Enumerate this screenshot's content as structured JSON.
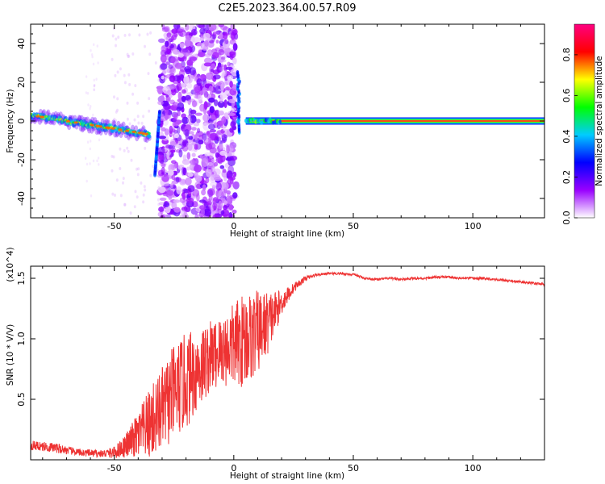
{
  "title": "C2E5.2023.364.00.57.R09",
  "chart_data": [
    {
      "type": "heatmap",
      "xlabel": "Height of straight line (km)",
      "ylabel": "Frequency (Hz)",
      "xlim": [
        -85,
        130
      ],
      "ylim": [
        -50,
        50
      ],
      "xticks": [
        -50,
        0,
        50,
        100
      ],
      "yticks": [
        -40,
        -20,
        0,
        20,
        40
      ],
      "colorbar": {
        "label": "Normalized spectral amplitude",
        "range": [
          0,
          0.95
        ],
        "ticks": [
          0.0,
          0.2,
          0.4,
          0.6,
          0.8
        ],
        "tick_labels": [
          "0.0",
          "0.2",
          "0.4",
          "0.6",
          "0.8"
        ],
        "colormap": [
          "#ffffff",
          "#9900ff",
          "#0000ff",
          "#00ccff",
          "#00ff00",
          "#ffff00",
          "#ff0000",
          "#ff0080"
        ]
      },
      "features": [
        {
          "name": "left-band",
          "x": [
            -85,
            -35
          ],
          "freq_start": 3,
          "freq_end": -7,
          "amplitude": 0.6
        },
        {
          "name": "noise-region",
          "x": [
            -31,
            1
          ],
          "freq_range": [
            -50,
            50
          ],
          "amplitude": 0.2
        },
        {
          "name": "right-line",
          "x": [
            5,
            130
          ],
          "freq": 0,
          "amplitude": 0.9
        }
      ]
    },
    {
      "type": "line",
      "xlabel": "Height of straight line (km)",
      "ylabel": "SNR (10 * V/V)",
      "y_multiplier": "(x10^4)",
      "xlim": [
        -85,
        130
      ],
      "ylim": [
        0,
        1.6
      ],
      "xticks": [
        -50,
        0,
        50,
        100
      ],
      "yticks": [
        0.5,
        1.0,
        1.5
      ],
      "ytick_labels": [
        "0.5",
        "1.0",
        "1.5"
      ],
      "line_color": "#ee3333",
      "series": [
        {
          "x": [
            -85,
            -75,
            -65,
            -55,
            -50,
            -45,
            -40,
            -35,
            -30,
            -25,
            -20,
            -15,
            -10,
            -5,
            0,
            5,
            10,
            15,
            20,
            25,
            30,
            35,
            40,
            45,
            50,
            55,
            60,
            65,
            70,
            75,
            80,
            85,
            90,
            95,
            100,
            105,
            110,
            115,
            120,
            125,
            130
          ],
          "y": [
            0.12,
            0.1,
            0.06,
            0.05,
            0.06,
            0.12,
            0.2,
            0.3,
            0.42,
            0.55,
            0.65,
            0.75,
            0.85,
            0.9,
            0.95,
            1.0,
            1.05,
            1.15,
            1.3,
            1.42,
            1.5,
            1.53,
            1.54,
            1.54,
            1.53,
            1.5,
            1.49,
            1.5,
            1.49,
            1.5,
            1.5,
            1.51,
            1.51,
            1.5,
            1.5,
            1.5,
            1.49,
            1.48,
            1.47,
            1.46,
            1.45
          ],
          "noise_amplitude": [
            0.04,
            0.04,
            0.03,
            0.03,
            0.05,
            0.1,
            0.2,
            0.3,
            0.35,
            0.4,
            0.4,
            0.35,
            0.3,
            0.3,
            0.35,
            0.4,
            0.35,
            0.25,
            0.1,
            0.04,
            0.02,
            0.01,
            0.01,
            0.01,
            0.01,
            0.01,
            0.01,
            0.01,
            0.01,
            0.01,
            0.01,
            0.01,
            0.01,
            0.01,
            0.01,
            0.01,
            0.01,
            0.01,
            0.01,
            0.01,
            0.01
          ]
        }
      ]
    }
  ]
}
